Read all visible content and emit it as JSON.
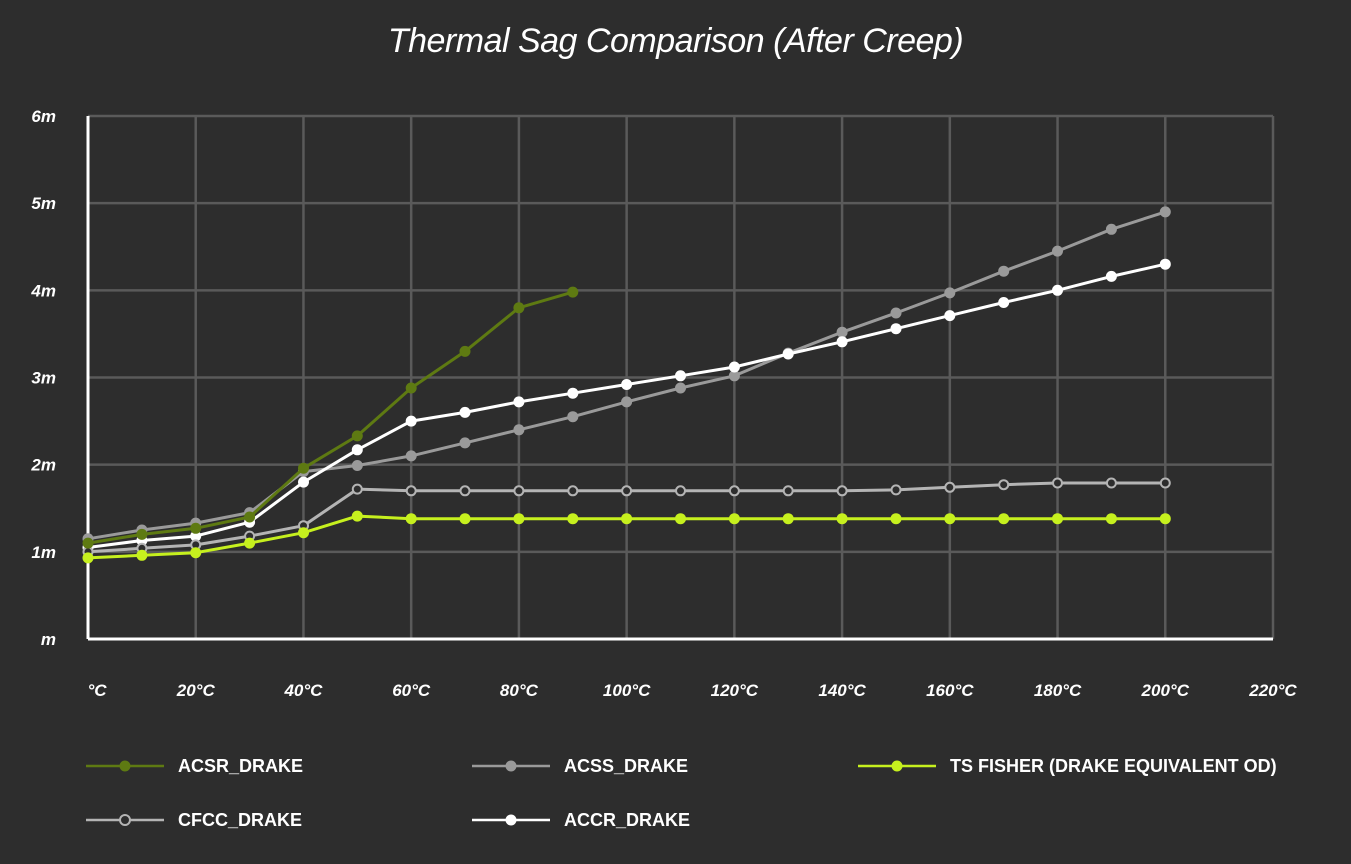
{
  "chart_data": {
    "type": "line",
    "title": "Thermal Sag Comparison (After Creep)",
    "xlabel": "",
    "ylabel": "",
    "xlim": [
      0,
      220
    ],
    "ylim": [
      0,
      6
    ],
    "x_ticks": [
      0,
      20,
      40,
      60,
      80,
      100,
      120,
      140,
      160,
      180,
      200,
      220
    ],
    "x_tick_labels": [
      "°C",
      "20°C",
      "40°C",
      "60°C",
      "80°C",
      "100°C",
      "120°C",
      "140°C",
      "160°C",
      "180°C",
      "200°C",
      "220°C"
    ],
    "y_ticks": [
      0,
      1,
      2,
      3,
      4,
      5,
      6
    ],
    "y_tick_labels": [
      "m",
      "1m",
      "2m",
      "3m",
      "4m",
      "5m",
      "6m"
    ],
    "grid": true,
    "legend_position": "bottom",
    "series": [
      {
        "name": "ACSS_DRAKE",
        "color": "#9a9a9a",
        "marker": "filled",
        "x": [
          0,
          10,
          20,
          30,
          40,
          50,
          60,
          70,
          80,
          90,
          100,
          110,
          120,
          130,
          140,
          150,
          160,
          170,
          180,
          190,
          200
        ],
        "values": [
          1.15,
          1.25,
          1.33,
          1.45,
          1.92,
          1.99,
          2.1,
          2.25,
          2.4,
          2.55,
          2.72,
          2.88,
          3.02,
          3.28,
          3.52,
          3.74,
          3.97,
          4.22,
          4.45,
          4.7,
          4.9
        ]
      },
      {
        "name": "ACCR_DRAKE",
        "color": "#ffffff",
        "marker": "filled",
        "x": [
          0,
          10,
          20,
          30,
          40,
          50,
          60,
          70,
          80,
          90,
          100,
          110,
          120,
          130,
          140,
          150,
          160,
          170,
          180,
          190,
          200
        ],
        "values": [
          1.05,
          1.13,
          1.18,
          1.34,
          1.8,
          2.17,
          2.5,
          2.6,
          2.72,
          2.82,
          2.92,
          3.02,
          3.12,
          3.27,
          3.41,
          3.56,
          3.71,
          3.86,
          4.0,
          4.16,
          4.3
        ]
      },
      {
        "name": "CFCC_DRAKE",
        "color": "#b4b4b4",
        "marker": "hollow",
        "x": [
          0,
          10,
          20,
          30,
          40,
          50,
          60,
          70,
          80,
          90,
          100,
          110,
          120,
          130,
          140,
          150,
          160,
          170,
          180,
          190,
          200
        ],
        "values": [
          1.0,
          1.04,
          1.08,
          1.18,
          1.3,
          1.72,
          1.7,
          1.7,
          1.7,
          1.7,
          1.7,
          1.7,
          1.7,
          1.7,
          1.7,
          1.71,
          1.74,
          1.77,
          1.79,
          1.79,
          1.79
        ]
      },
      {
        "name": "ACSR_DRAKE",
        "color": "#5e7a12",
        "marker": "filled",
        "x": [
          0,
          10,
          20,
          30,
          40,
          50,
          60,
          70,
          80,
          90
        ],
        "values": [
          1.1,
          1.2,
          1.27,
          1.4,
          1.96,
          2.33,
          2.88,
          3.3,
          3.8,
          3.98
        ]
      },
      {
        "name": "TS FISHER (DRAKE EQUIVALENT OD)",
        "color": "#c6f01e",
        "marker": "filled",
        "x": [
          0,
          10,
          20,
          30,
          40,
          50,
          60,
          70,
          80,
          90,
          100,
          110,
          120,
          130,
          140,
          150,
          160,
          170,
          180,
          190,
          200
        ],
        "values": [
          0.93,
          0.96,
          0.99,
          1.1,
          1.22,
          1.41,
          1.38,
          1.38,
          1.38,
          1.38,
          1.38,
          1.38,
          1.38,
          1.38,
          1.38,
          1.38,
          1.38,
          1.38,
          1.38,
          1.38,
          1.38
        ]
      }
    ]
  },
  "legend": {
    "items": [
      {
        "label": "ACSR_DRAKE",
        "color": "#5e7a12",
        "marker": "filled"
      },
      {
        "label": "ACSS_DRAKE",
        "color": "#9a9a9a",
        "marker": "filled"
      },
      {
        "label": "TS FISHER (DRAKE EQUIVALENT OD)",
        "color": "#c6f01e",
        "marker": "filled"
      },
      {
        "label": "CFCC_DRAKE",
        "color": "#b4b4b4",
        "marker": "hollow"
      },
      {
        "label": "ACCR_DRAKE",
        "color": "#ffffff",
        "marker": "filled"
      }
    ]
  },
  "colors": {
    "background": "#2d2d2d",
    "grid": "#5a5a5a",
    "axis": "#ffffff"
  }
}
